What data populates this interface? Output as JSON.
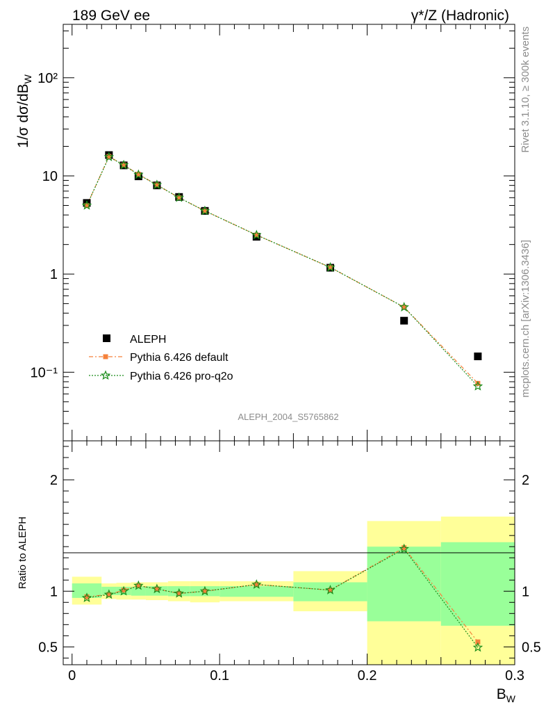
{
  "chart_data": [
    {
      "type": "scatter",
      "title_left": "189 GeV ee",
      "title_right": "γ*/Z (Hadronic)",
      "ylabel_parts": [
        "1/σ dσ/dB",
        "W"
      ],
      "yscale": "log",
      "ylim": [
        0.02,
        350
      ],
      "xlim": [
        -0.006,
        0.3
      ],
      "ytick_labels": [
        "10⁻¹",
        "1",
        "10",
        "10²"
      ],
      "analysis_label": "ALEPH_2004_S5765862",
      "side_label_top": "Rivet 3.1.10, ≥ 300k events",
      "side_label_bottom": "mcplots.cern.ch [arXiv:1306.3436]",
      "legend": [
        "ALEPH",
        "Pythia 6.426 default",
        "Pythia 6.426 pro-q2o"
      ],
      "series": [
        {
          "name": "ALEPH",
          "color": "#000000",
          "x": [
            0.01,
            0.025,
            0.035,
            0.045,
            0.0575,
            0.0725,
            0.09,
            0.125,
            0.175,
            0.225,
            0.275
          ],
          "y": [
            5.3,
            16.3,
            12.8,
            9.9,
            8.0,
            6.1,
            4.4,
            2.4,
            1.16,
            0.335,
            0.145
          ]
        },
        {
          "name": "Pythia 6.426 default",
          "color": "#f5813a",
          "x": [
            0.01,
            0.025,
            0.035,
            0.045,
            0.0575,
            0.0725,
            0.09,
            0.125,
            0.175,
            0.225,
            0.275
          ],
          "y": [
            5.0,
            15.8,
            12.9,
            10.4,
            8.1,
            6.0,
            4.4,
            2.5,
            1.17,
            0.46,
            0.077
          ]
        },
        {
          "name": "Pythia 6.426 pro-q2o",
          "color": "#1a8c1a",
          "x": [
            0.01,
            0.025,
            0.035,
            0.045,
            0.0575,
            0.0725,
            0.09,
            0.125,
            0.175,
            0.225,
            0.275
          ],
          "y": [
            5.0,
            15.6,
            12.9,
            10.3,
            8.1,
            6.0,
            4.4,
            2.5,
            1.17,
            0.46,
            0.072
          ]
        }
      ]
    },
    {
      "type": "scatter",
      "ylabel": "Ratio to ALEPH",
      "xlabel_parts": [
        "B",
        "W"
      ],
      "ylim": [
        0.34,
        2.35
      ],
      "xlim": [
        -0.006,
        0.3
      ],
      "ytick_labels": [
        "0.5",
        "1",
        "2"
      ],
      "xtick_labels": [
        "0",
        "0.1",
        "0.2",
        "0.3"
      ],
      "band_colors": {
        "outer": "#ffff99",
        "inner": "#99ff99"
      },
      "bands": [
        {
          "x0": 0.0,
          "x1": 0.02,
          "inner": [
            0.94,
            1.07
          ],
          "outer": [
            0.88,
            1.13
          ]
        },
        {
          "x0": 0.02,
          "x1": 0.03,
          "inner": [
            0.965,
            1.04
          ],
          "outer": [
            0.93,
            1.07
          ]
        },
        {
          "x0": 0.03,
          "x1": 0.04,
          "inner": [
            0.965,
            1.04
          ],
          "outer": [
            0.925,
            1.075
          ]
        },
        {
          "x0": 0.04,
          "x1": 0.05,
          "inner": [
            0.96,
            1.04
          ],
          "outer": [
            0.925,
            1.08
          ]
        },
        {
          "x0": 0.05,
          "x1": 0.065,
          "inner": [
            0.96,
            1.045
          ],
          "outer": [
            0.92,
            1.08
          ]
        },
        {
          "x0": 0.065,
          "x1": 0.08,
          "inner": [
            0.955,
            1.045
          ],
          "outer": [
            0.91,
            1.09
          ]
        },
        {
          "x0": 0.08,
          "x1": 0.1,
          "inner": [
            0.955,
            1.045
          ],
          "outer": [
            0.9,
            1.09
          ]
        },
        {
          "x0": 0.1,
          "x1": 0.15,
          "inner": [
            0.95,
            1.045
          ],
          "outer": [
            0.91,
            1.09
          ]
        },
        {
          "x0": 0.15,
          "x1": 0.2,
          "inner": [
            0.91,
            1.08
          ],
          "outer": [
            0.82,
            1.18
          ]
        },
        {
          "x0": 0.2,
          "x1": 0.25,
          "inner": [
            0.73,
            1.4
          ],
          "outer": [
            0.34,
            1.63
          ]
        },
        {
          "x0": 0.25,
          "x1": 0.3,
          "inner": [
            0.69,
            1.44
          ],
          "outer": [
            0.34,
            1.67
          ]
        }
      ],
      "series": [
        {
          "name": "Pythia 6.426 default",
          "color": "#f5813a",
          "x": [
            0.01,
            0.025,
            0.035,
            0.045,
            0.0575,
            0.0725,
            0.09,
            0.125,
            0.175,
            0.225,
            0.275
          ],
          "y": [
            0.95,
            0.97,
            1.01,
            1.05,
            1.02,
            0.98,
            1.0,
            1.06,
            1.01,
            1.39,
            0.545
          ]
        },
        {
          "name": "Pythia 6.426 pro-q2o",
          "color": "#1a8c1a",
          "x": [
            0.01,
            0.025,
            0.035,
            0.045,
            0.0575,
            0.0725,
            0.09,
            0.125,
            0.175,
            0.225,
            0.275
          ],
          "y": [
            0.94,
            0.97,
            1.0,
            1.05,
            1.02,
            0.98,
            1.0,
            1.06,
            1.01,
            1.38,
            0.495
          ]
        }
      ]
    }
  ]
}
